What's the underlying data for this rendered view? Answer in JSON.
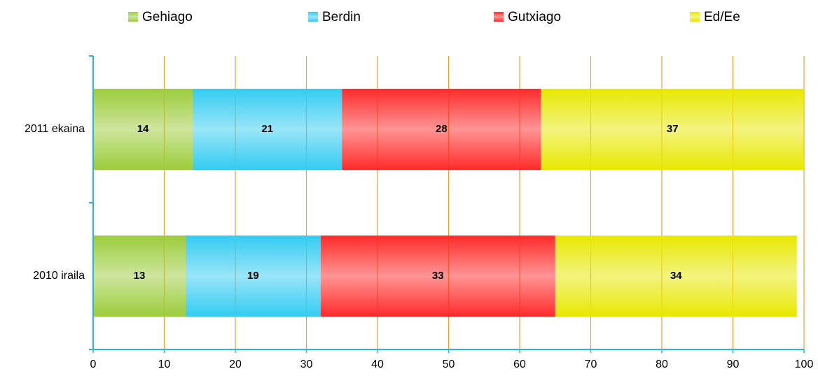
{
  "chart_data": {
    "type": "stacked-bar-horizontal",
    "categories": [
      "2011 ekaina",
      "2010 iraila"
    ],
    "series": [
      {
        "name": "Gehiago",
        "color": "#9ccc3c",
        "values": [
          14,
          13
        ]
      },
      {
        "name": "Berdin",
        "color": "#33ccf2",
        "values": [
          21,
          19
        ]
      },
      {
        "name": "Gutxiago",
        "color": "#ff2a2a",
        "values": [
          28,
          33
        ]
      },
      {
        "name": "Ed/Ee",
        "color": "#e8e800",
        "values": [
          37,
          34
        ]
      }
    ],
    "xlim": [
      0,
      100
    ],
    "xticks": [
      0,
      10,
      20,
      30,
      40,
      50,
      60,
      70,
      80,
      90,
      100
    ],
    "grid": true,
    "grid_color": "#f0a030",
    "axis_color": "#29b5ea",
    "legend": "top"
  }
}
